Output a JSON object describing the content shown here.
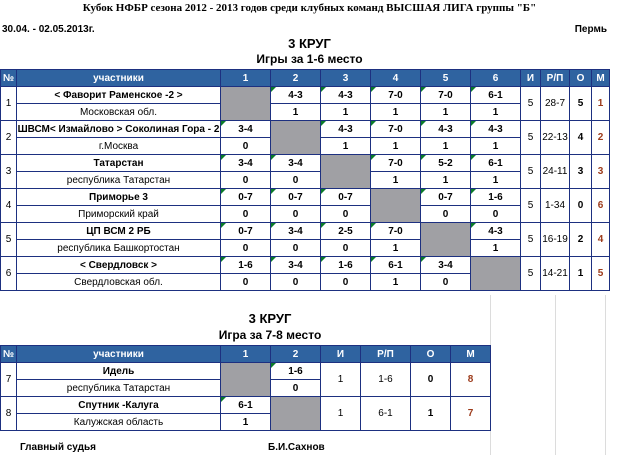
{
  "title": "Кубок НФБР сезона 2012 - 2013 годов среди клубных команд   ВЫСШАЯ ЛИГА  группы \"Б\"",
  "date": "30.04. - 02.05.2013г.",
  "city": "Пермь",
  "section1": {
    "round": "3 КРУГ",
    "subtitle": "Игры за 1-6 место",
    "headers": [
      "№",
      "участники",
      "1",
      "2",
      "3",
      "4",
      "5",
      "6",
      "И",
      "Р/П",
      "О",
      "М"
    ],
    "rows": [
      {
        "n": "1",
        "name": "< Фаворит Раменское -2 >",
        "region": "Московская обл.",
        "scores": [
          null,
          "4-3",
          "4-3",
          "7-0",
          "7-0",
          "6-1"
        ],
        "pts": [
          null,
          "1",
          "1",
          "1",
          "1",
          "1"
        ],
        "games": "5",
        "diff": "28-7",
        "o": "5",
        "m": "1"
      },
      {
        "n": "2",
        "name": "ШВСМ< Измайлово > Соколиная Гора - 2",
        "region": "г.Москва",
        "scores": [
          "3-4",
          null,
          "4-3",
          "7-0",
          "4-3",
          "4-3"
        ],
        "pts": [
          "0",
          null,
          "1",
          "1",
          "1",
          "1"
        ],
        "games": "5",
        "diff": "22-13",
        "o": "4",
        "m": "2"
      },
      {
        "n": "3",
        "name": "Татарстан",
        "region": "республика Татарстан",
        "scores": [
          "3-4",
          "3-4",
          null,
          "7-0",
          "5-2",
          "6-1"
        ],
        "pts": [
          "0",
          "0",
          null,
          "1",
          "1",
          "1"
        ],
        "games": "5",
        "diff": "24-11",
        "o": "3",
        "m": "3"
      },
      {
        "n": "4",
        "name": "Приморье 3",
        "region": "Приморский край",
        "scores": [
          "0-7",
          "0-7",
          "0-7",
          null,
          "0-7",
          "1-6"
        ],
        "pts": [
          "0",
          "0",
          "0",
          null,
          "0",
          "0"
        ],
        "games": "5",
        "diff": "1-34",
        "o": "0",
        "m": "6"
      },
      {
        "n": "5",
        "name": "ЦП ВСМ 2 РБ",
        "region": "республика Башкортостан",
        "scores": [
          "0-7",
          "3-4",
          "2-5",
          "7-0",
          null,
          "4-3"
        ],
        "pts": [
          "0",
          "0",
          "0",
          "1",
          null,
          "1"
        ],
        "games": "5",
        "diff": "16-19",
        "o": "2",
        "m": "4"
      },
      {
        "n": "6",
        "name": "< Свердловск >",
        "region": "Свердловская обл.",
        "scores": [
          "1-6",
          "3-4",
          "1-6",
          "6-1",
          "3-4",
          null
        ],
        "pts": [
          "0",
          "0",
          "0",
          "1",
          "0",
          null
        ],
        "games": "5",
        "diff": "14-21",
        "o": "1",
        "m": "5"
      }
    ]
  },
  "section2": {
    "round": "3 КРУГ",
    "subtitle": "Игра за 7-8 место",
    "headers": [
      "№",
      "участники",
      "1",
      "2",
      "И",
      "Р/П",
      "О",
      "М"
    ],
    "rows": [
      {
        "n": "7",
        "name": "Идель",
        "region": "республика Татарстан",
        "scores": [
          null,
          "1-6"
        ],
        "pts": [
          null,
          "0"
        ],
        "games": "1",
        "diff": "1-6",
        "o": "0",
        "m": "8"
      },
      {
        "n": "8",
        "name": "Спутник -Калуга",
        "region": "Калужская область",
        "scores": [
          "6-1",
          null
        ],
        "pts": [
          "1",
          null
        ],
        "games": "1",
        "diff": "6-1",
        "o": "1",
        "m": "7"
      }
    ]
  },
  "judge_label": "Главный судья",
  "judge_name": "Б.И.Сахнов"
}
